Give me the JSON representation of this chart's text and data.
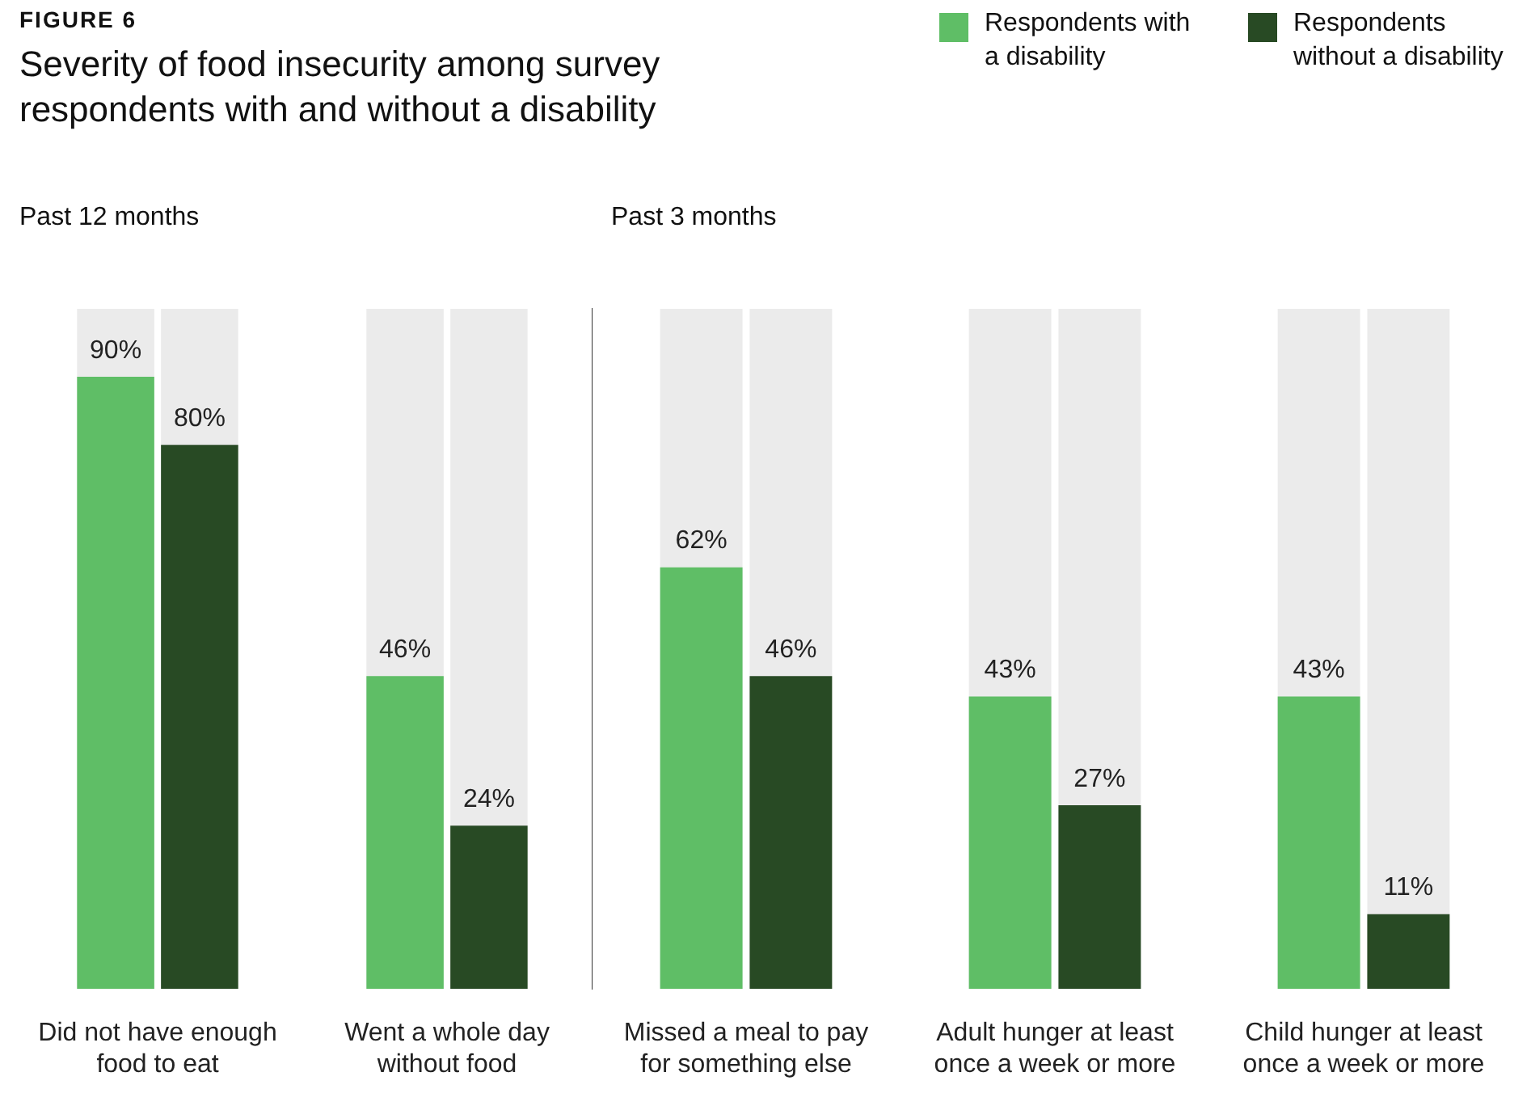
{
  "chart_data": [
    {
      "type": "bar",
      "title": "Severity of food insecurity among survey respondents with and without a disability",
      "subtitle": "Past 12 months",
      "annotations": [
        "FIGURE 6"
      ],
      "categories": [
        "Did not have enough food to eat",
        "Went a whole day without food"
      ],
      "series": [
        {
          "name": "Respondents with a disability",
          "color": "#5fbe66",
          "values": [
            90,
            46
          ],
          "value_labels": [
            "90%",
            "46%"
          ]
        },
        {
          "name": "Respondents without a disability",
          "color": "#284a24",
          "values": [
            80,
            24
          ],
          "value_labels": [
            "80%",
            "24%"
          ]
        }
      ],
      "ylim": [
        0,
        100
      ],
      "tick_labels": "x",
      "legend": "top right"
    },
    {
      "type": "bar",
      "subtitle": "Past 3 months",
      "categories": [
        "Missed a meal to pay for something else",
        "Adult hunger at least once a week or more",
        "Child hunger at least once a week or more"
      ],
      "series": [
        {
          "color": "#5fbe66",
          "values": [
            62,
            43,
            43
          ],
          "value_labels": [
            "62%",
            "43%",
            "43%"
          ]
        },
        {
          "color": "#284a24",
          "values": [
            46,
            27,
            11
          ],
          "value_labels": [
            "46%",
            "27%",
            "11%"
          ]
        }
      ],
      "ylim": [
        0,
        100
      ],
      "tick_labels": "x"
    }
  ]
}
